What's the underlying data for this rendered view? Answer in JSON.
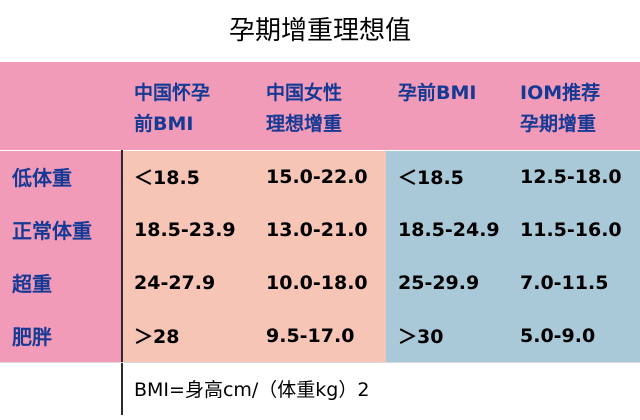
{
  "title": "孕期增重理想值",
  "header": {
    "corner": "",
    "col1_line1": "中国怀孕",
    "col1_line2": "前BMI",
    "col2_line1": "中国女性",
    "col2_line2": "理想增重",
    "col3_line1": "孕前BMI",
    "col3_line2": "",
    "col4_line1": "IOM推荐",
    "col4_line2": "孕期增重"
  },
  "rows": [
    {
      "label": "低体重",
      "cn_bmi": "＜18.5",
      "cn_gain": "15.0-22.0",
      "bmi": "＜18.5",
      "iom_gain": "12.5-18.0"
    },
    {
      "label": "正常体重",
      "cn_bmi": "18.5-23.9",
      "cn_gain": "13.0-21.0",
      "bmi": "18.5-24.9",
      "iom_gain": "11.5-16.0"
    },
    {
      "label": "超重",
      "cn_bmi": "24-27.9",
      "cn_gain": "10.0-18.0",
      "bmi": "25-29.9",
      "iom_gain": "7.0-11.5"
    },
    {
      "label": "肥胖",
      "cn_bmi": "＞28",
      "cn_gain": "9.5-17.0",
      "bmi": "＞30",
      "iom_gain": "5.0-9.0"
    }
  ],
  "footer": "BMI=身高cm/（体重kg）2",
  "colors": {
    "pink": "#f29bb9",
    "peach": "#f6c5b6",
    "blue": "#aac9d8",
    "header_text": "#163a94"
  }
}
